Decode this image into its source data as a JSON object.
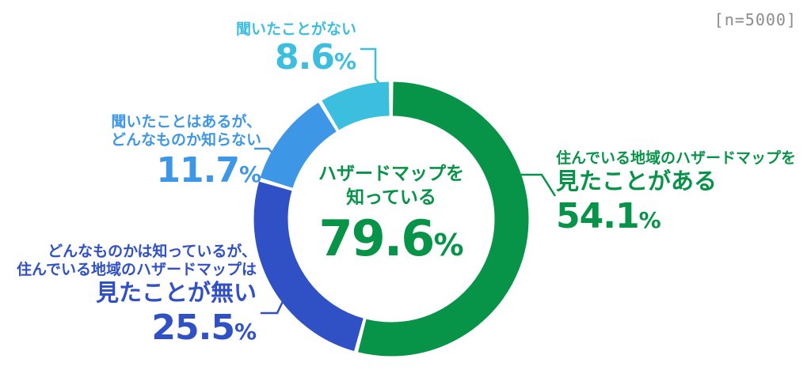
{
  "chart_data": {
    "type": "pie",
    "subtype": "donut",
    "direction": "clockwise",
    "start_angle_deg": 0,
    "legend": "none",
    "sample_note": "[n=5000]",
    "sample_note_color": "#8C8C8C",
    "center_label": {
      "lines": [
        "ハザードマップを",
        "知っている"
      ],
      "value": 79.6,
      "unit": "%",
      "color": "#089448"
    },
    "series": [
      {
        "label_lines": [
          "住んでいる地域のハザードマップを"
        ],
        "emphasis_line": "見たことがある",
        "value": 54.1,
        "unit": "%",
        "color": "#089448"
      },
      {
        "label_lines": [
          "どんなものかは知っているが、",
          "住んでいる地域のハザードマップは"
        ],
        "emphasis_line": "見たことが無い",
        "value": 25.5,
        "unit": "%",
        "color": "#3050C6"
      },
      {
        "label_lines": [
          "聞いたことはあるが、",
          "どんなものか知らない"
        ],
        "emphasis_line": "",
        "value": 11.7,
        "unit": "%",
        "color": "#3E97E6"
      },
      {
        "label_lines": [
          "聞いたことがない"
        ],
        "emphasis_line": "",
        "value": 8.6,
        "unit": "%",
        "color": "#3CBEDF"
      }
    ]
  }
}
